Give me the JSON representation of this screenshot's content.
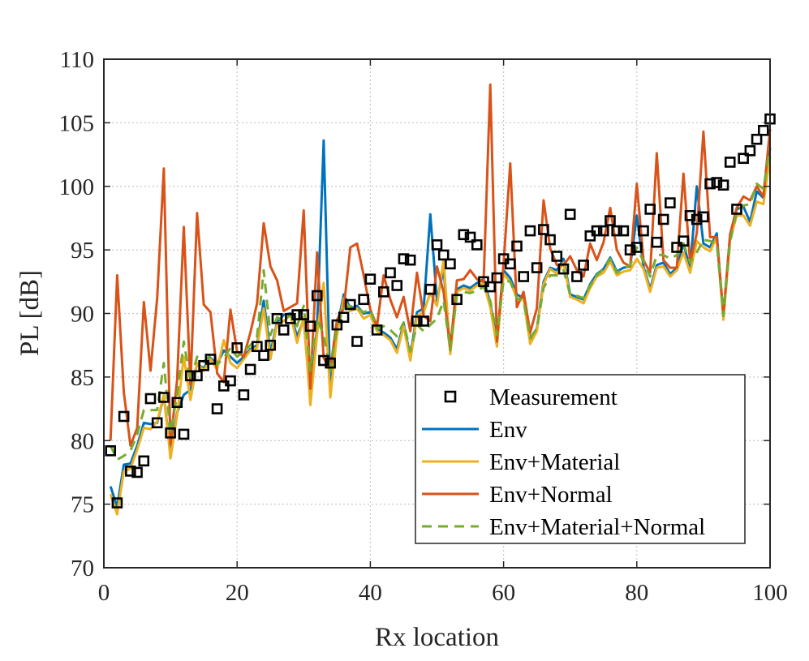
{
  "chart_data": {
    "type": "line",
    "xlabel": "Rx location",
    "ylabel": "PL [dB]",
    "xlim": [
      0,
      100
    ],
    "ylim": [
      70,
      110
    ],
    "xticks": [
      0,
      20,
      40,
      60,
      80,
      100
    ],
    "yticks": [
      70,
      75,
      80,
      85,
      90,
      95,
      100,
      105,
      110
    ],
    "grid": true,
    "legend_position": "bottom-right",
    "series": [
      {
        "name": "Measurement",
        "style": "square-marker",
        "color": "#000000",
        "x": [
          1,
          2,
          3,
          4,
          5,
          6,
          7,
          8,
          9,
          10,
          11,
          12,
          13,
          14,
          15,
          16,
          17,
          18,
          19,
          20,
          21,
          22,
          23,
          24,
          25,
          26,
          27,
          28,
          29,
          30,
          31,
          32,
          33,
          34,
          35,
          36,
          37,
          38,
          39,
          40,
          41,
          42,
          43,
          44,
          45,
          46,
          47,
          48,
          49,
          50,
          51,
          52,
          53,
          54,
          55,
          56,
          57,
          58,
          59,
          60,
          61,
          62,
          63,
          64,
          65,
          66,
          67,
          68,
          69,
          70,
          71,
          72,
          73,
          74,
          75,
          76,
          77,
          78,
          79,
          80,
          81,
          82,
          83,
          84,
          85,
          86,
          87,
          88,
          89,
          90,
          91,
          92,
          93,
          94,
          95,
          96,
          97,
          98,
          99,
          100
        ],
        "values": [
          79.2,
          75.1,
          81.9,
          77.6,
          77.5,
          78.4,
          83.3,
          81.4,
          83.4,
          80.6,
          83.0,
          80.5,
          85.1,
          85.1,
          85.9,
          86.4,
          82.5,
          84.3,
          84.7,
          87.3,
          83.6,
          85.6,
          87.4,
          86.7,
          87.5,
          89.6,
          88.7,
          89.6,
          89.9,
          89.9,
          89.0,
          91.4,
          86.3,
          86.1,
          89.1,
          89.7,
          90.7,
          87.8,
          91.1,
          92.7,
          88.7,
          91.7,
          93.2,
          92.2,
          94.3,
          94.2,
          89.4,
          89.4,
          91.9,
          95.4,
          94.6,
          93.9,
          91.1,
          96.2,
          96.0,
          95.4,
          92.5,
          92.1,
          92.8,
          94.3,
          93.9,
          95.3,
          92.9,
          96.5,
          93.6,
          96.6,
          95.8,
          94.5,
          93.5,
          97.8,
          92.9,
          93.8,
          96.1,
          96.5,
          96.5,
          97.3,
          96.5,
          96.5,
          95.0,
          95.2,
          96.5,
          98.2,
          95.6,
          97.4,
          98.7,
          95.2,
          95.7,
          97.7,
          97.4,
          97.6,
          100.2,
          100.3,
          100.1,
          101.9,
          98.2,
          102.2,
          102.8,
          103.7,
          104.4,
          105.3
        ]
      },
      {
        "name": "Env",
        "style": "solid",
        "color": "#0072bd",
        "x": [
          1,
          2,
          3,
          4,
          5,
          6,
          7,
          8,
          9,
          10,
          11,
          12,
          13,
          14,
          15,
          16,
          17,
          18,
          19,
          20,
          21,
          22,
          23,
          24,
          25,
          26,
          27,
          28,
          29,
          30,
          31,
          32,
          33,
          34,
          35,
          36,
          37,
          38,
          39,
          40,
          41,
          42,
          43,
          44,
          45,
          46,
          47,
          48,
          49,
          50,
          51,
          52,
          53,
          54,
          55,
          56,
          57,
          58,
          59,
          60,
          61,
          62,
          63,
          64,
          65,
          66,
          67,
          68,
          69,
          70,
          71,
          72,
          73,
          74,
          75,
          76,
          77,
          78,
          79,
          80,
          81,
          82,
          83,
          84,
          85,
          86,
          87,
          88,
          89,
          90,
          91,
          92,
          93,
          94,
          95,
          96,
          97,
          98,
          99,
          100
        ],
        "values": [
          76.4,
          74.8,
          78.1,
          78.2,
          79.6,
          81.4,
          81.3,
          81.4,
          83.5,
          79.0,
          82.2,
          83.6,
          84.0,
          86.0,
          85.7,
          86.5,
          86.0,
          87.1,
          86.6,
          86.1,
          86.6,
          87.2,
          87.5,
          91.0,
          86.9,
          89.3,
          89.9,
          90.0,
          88.2,
          89.5,
          83.3,
          88.8,
          103.6,
          83.8,
          88.8,
          91.5,
          90.4,
          90.6,
          90.0,
          90.1,
          88.8,
          88.5,
          88.1,
          87.2,
          89.2,
          86.6,
          90.1,
          90.4,
          97.8,
          91.0,
          93.5,
          87.2,
          91.9,
          92.2,
          92.0,
          92.4,
          92.7,
          90.8,
          87.8,
          93.4,
          92.8,
          91.5,
          91.2,
          88.0,
          88.8,
          92.5,
          93.6,
          93.4,
          94.3,
          91.5,
          91.3,
          91.1,
          92.3,
          93.1,
          93.5,
          94.4,
          93.3,
          93.6,
          93.7,
          97.7,
          93.7,
          91.9,
          93.8,
          94.0,
          93.1,
          93.6,
          95.5,
          93.5,
          100.0,
          95.5,
          95.2,
          96.3,
          89.7,
          96.0,
          98.2,
          98.4,
          97.2,
          99.6,
          99.1,
          103.0
        ]
      },
      {
        "name": "Env+Material",
        "style": "solid",
        "color": "#edb120",
        "x": [
          1,
          2,
          3,
          4,
          5,
          6,
          7,
          8,
          9,
          10,
          11,
          12,
          13,
          14,
          15,
          16,
          17,
          18,
          19,
          20,
          21,
          22,
          23,
          24,
          25,
          26,
          27,
          28,
          29,
          30,
          31,
          32,
          33,
          34,
          35,
          36,
          37,
          38,
          39,
          40,
          41,
          42,
          43,
          44,
          45,
          46,
          47,
          48,
          49,
          50,
          51,
          52,
          53,
          54,
          55,
          56,
          57,
          58,
          59,
          60,
          61,
          62,
          63,
          64,
          65,
          66,
          67,
          68,
          69,
          70,
          71,
          72,
          73,
          74,
          75,
          76,
          77,
          78,
          79,
          80,
          81,
          82,
          83,
          84,
          85,
          86,
          87,
          88,
          89,
          90,
          91,
          92,
          93,
          94,
          95,
          96,
          97,
          98,
          99,
          100
        ],
        "values": [
          75.8,
          74.2,
          77.6,
          77.8,
          79.3,
          81.0,
          80.9,
          81.5,
          83.6,
          78.6,
          82.0,
          86.6,
          83.2,
          86.1,
          85.5,
          86.4,
          85.6,
          87.9,
          86.1,
          85.7,
          86.4,
          87.1,
          87.3,
          90.4,
          86.4,
          89.2,
          89.4,
          89.9,
          87.7,
          89.7,
          82.8,
          88.3,
          92.4,
          83.4,
          88.3,
          91.2,
          90.2,
          90.4,
          89.6,
          89.9,
          88.6,
          88.3,
          87.9,
          86.9,
          89.0,
          86.3,
          89.8,
          90.1,
          91.6,
          90.6,
          94.2,
          86.8,
          91.7,
          92.0,
          91.8,
          92.2,
          92.4,
          90.5,
          87.4,
          93.1,
          92.5,
          91.2,
          91.1,
          87.6,
          88.6,
          92.3,
          93.5,
          93.1,
          94.0,
          91.3,
          91.1,
          90.8,
          92.0,
          92.9,
          93.2,
          94.1,
          93.0,
          93.3,
          93.4,
          94.3,
          93.5,
          91.7,
          93.6,
          93.7,
          92.9,
          93.4,
          94.8,
          93.2,
          95.7,
          95.2,
          94.9,
          96.0,
          89.5,
          95.8,
          97.7,
          97.7,
          96.9,
          98.8,
          98.6,
          102.4
        ]
      },
      {
        "name": "Env+Normal",
        "style": "solid",
        "color": "#d95319",
        "x": [
          1,
          2,
          3,
          4,
          5,
          6,
          7,
          8,
          9,
          10,
          11,
          12,
          13,
          14,
          15,
          16,
          17,
          18,
          19,
          20,
          21,
          22,
          23,
          24,
          25,
          26,
          27,
          28,
          29,
          30,
          31,
          32,
          33,
          34,
          35,
          36,
          37,
          38,
          39,
          40,
          41,
          42,
          43,
          44,
          45,
          46,
          47,
          48,
          49,
          50,
          51,
          52,
          53,
          54,
          55,
          56,
          57,
          58,
          59,
          60,
          61,
          62,
          63,
          64,
          65,
          66,
          67,
          68,
          69,
          70,
          71,
          72,
          73,
          74,
          75,
          76,
          77,
          78,
          79,
          80,
          81,
          82,
          83,
          84,
          85,
          86,
          87,
          88,
          89,
          90,
          91,
          92,
          93,
          94,
          95,
          96,
          97,
          98,
          99,
          100
        ],
        "values": [
          80.0,
          93.0,
          83.8,
          79.6,
          81.0,
          90.9,
          85.5,
          91.2,
          101.4,
          79.7,
          84.8,
          96.8,
          84.4,
          97.9,
          90.7,
          90.1,
          85.3,
          84.6,
          90.3,
          87.0,
          86.6,
          88.5,
          90.8,
          97.1,
          93.7,
          92.6,
          90.2,
          90.5,
          90.8,
          98.1,
          84.1,
          94.8,
          86.5,
          85.6,
          89.5,
          90.4,
          95.2,
          95.5,
          93.0,
          90.3,
          89.0,
          93.0,
          91.1,
          89.7,
          91.3,
          88.6,
          93.2,
          89.8,
          89.4,
          93.7,
          91.7,
          87.2,
          92.6,
          92.7,
          93.4,
          92.7,
          92.5,
          108.0,
          87.8,
          93.9,
          101.8,
          90.5,
          91.7,
          88.5,
          90.4,
          98.9,
          95.1,
          93.8,
          93.8,
          94.5,
          93.4,
          92.9,
          95.5,
          94.2,
          95.6,
          98.3,
          95.0,
          94.0,
          93.7,
          100.2,
          94.2,
          93.2,
          102.6,
          94.2,
          93.6,
          93.6,
          101.0,
          94.0,
          96.3,
          104.3,
          96.0,
          96.0,
          89.9,
          96.2,
          98.3,
          99.2,
          98.9,
          100.0,
          99.2,
          104.5
        ]
      },
      {
        "name": "Env+Material+Normal",
        "style": "dashed",
        "color": "#77ac30",
        "x": [
          1,
          2,
          3,
          4,
          5,
          6,
          7,
          8,
          9,
          10,
          11,
          12,
          13,
          14,
          15,
          16,
          17,
          18,
          19,
          20,
          21,
          22,
          23,
          24,
          25,
          26,
          27,
          28,
          29,
          30,
          31,
          32,
          33,
          34,
          35,
          36,
          37,
          38,
          39,
          40,
          41,
          42,
          43,
          44,
          45,
          46,
          47,
          48,
          49,
          50,
          51,
          52,
          53,
          54,
          55,
          56,
          57,
          58,
          59,
          60,
          61,
          62,
          63,
          64,
          65,
          66,
          67,
          68,
          69,
          70,
          71,
          72,
          73,
          74,
          75,
          76,
          77,
          78,
          79,
          80,
          81,
          82,
          83,
          84,
          85,
          86,
          87,
          88,
          89,
          90,
          91,
          92,
          93,
          94,
          95,
          96,
          97,
          98,
          99,
          100
        ],
        "values": [
          79.6,
          78.5,
          78.8,
          79.2,
          80.5,
          82.4,
          82.4,
          82.4,
          86.1,
          80.6,
          83.6,
          87.8,
          84.6,
          86.6,
          86.2,
          86.7,
          86.0,
          86.5,
          87.3,
          86.6,
          87.0,
          87.5,
          88.2,
          93.4,
          88.3,
          89.7,
          89.4,
          89.9,
          89.0,
          90.6,
          85.5,
          89.6,
          88.3,
          85.5,
          88.9,
          90.4,
          90.6,
          90.4,
          90.1,
          90.3,
          88.8,
          89.0,
          88.7,
          88.2,
          89.3,
          87.0,
          89.1,
          88.6,
          89.1,
          89.6,
          91.0,
          87.1,
          91.5,
          91.7,
          91.6,
          91.8,
          92.1,
          91.0,
          88.3,
          92.6,
          92.5,
          91.2,
          91.0,
          88.1,
          88.8,
          92.0,
          93.0,
          93.0,
          93.4,
          91.5,
          91.4,
          91.2,
          92.2,
          93.0,
          93.5,
          94.3,
          93.2,
          93.5,
          93.8,
          95.2,
          94.1,
          92.9,
          94.6,
          94.6,
          94.3,
          94.6,
          95.5,
          94.0,
          94.8,
          95.8,
          95.7,
          95.5,
          89.8,
          95.6,
          98.0,
          98.5,
          98.6,
          100.2,
          99.8,
          103.1
        ]
      }
    ]
  }
}
